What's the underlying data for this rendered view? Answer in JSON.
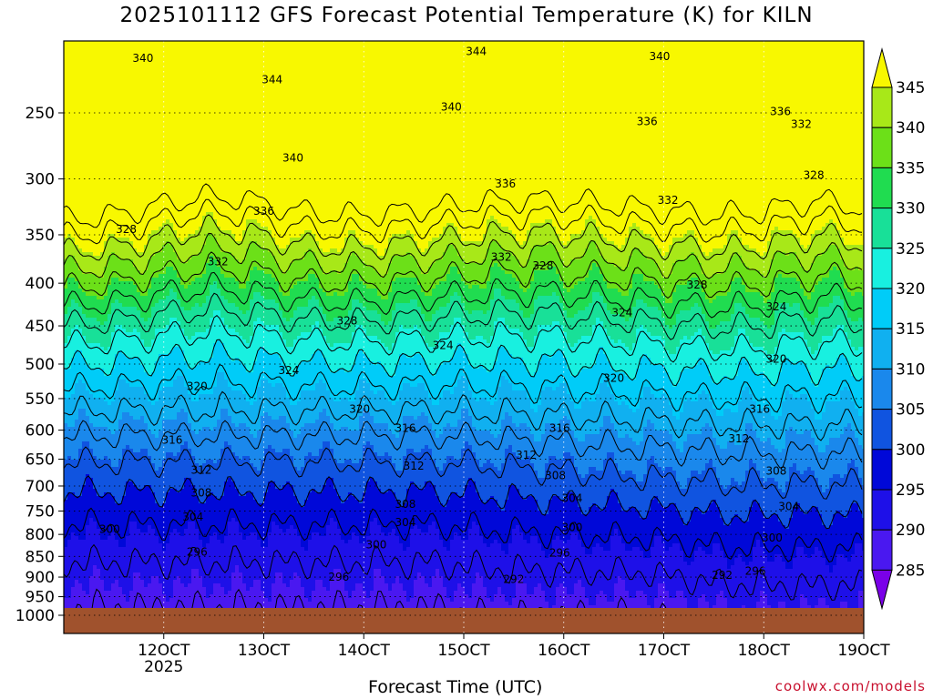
{
  "chart_data": {
    "type": "heatmap",
    "title": "2025101112 GFS Forecast Potential Temperature (K) for KILN",
    "xlabel": "Forecast Time (UTC)",
    "ylabel": "",
    "x_ticks": [
      {
        "label": "12OCT",
        "hour": 24,
        "sub": "2025"
      },
      {
        "label": "13OCT",
        "hour": 48
      },
      {
        "label": "14OCT",
        "hour": 72
      },
      {
        "label": "15OCT",
        "hour": 96
      },
      {
        "label": "16OCT",
        "hour": 120
      },
      {
        "label": "17OCT",
        "hour": 144
      },
      {
        "label": "18OCT",
        "hour": 168
      },
      {
        "label": "19OCT",
        "hour": 192
      }
    ],
    "xlim_hours": [
      0,
      192
    ],
    "ylim_hpa": [
      1000,
      200
    ],
    "y_ticks": [
      250,
      300,
      350,
      400,
      450,
      500,
      550,
      600,
      650,
      700,
      750,
      800,
      850,
      900,
      950,
      1000
    ],
    "y_scale": "log-pressure",
    "colorbar": {
      "levels": [
        285,
        290,
        295,
        300,
        305,
        310,
        315,
        320,
        325,
        330,
        335,
        340,
        345
      ],
      "colors": [
        "#7a00e8",
        "#4a18f0",
        "#1e10e8",
        "#0008d8",
        "#1054e0",
        "#1a88ec",
        "#10b0f0",
        "#00ccf8",
        "#18f0e0",
        "#18e098",
        "#20dc50",
        "#6ce018",
        "#a8e818",
        "#f8f800"
      ],
      "extend": "both"
    },
    "ground_color": "#a0522d",
    "contour_interval": 4,
    "contour_labels": [
      {
        "value": 340,
        "hour": 19,
        "p": 215
      },
      {
        "value": 344,
        "hour": 50,
        "p": 228
      },
      {
        "value": 344,
        "hour": 99,
        "p": 211
      },
      {
        "value": 340,
        "hour": 143,
        "p": 214
      },
      {
        "value": 340,
        "hour": 93,
        "p": 246
      },
      {
        "value": 336,
        "hour": 140,
        "p": 256
      },
      {
        "value": 336,
        "hour": 172,
        "p": 249
      },
      {
        "value": 332,
        "hour": 177,
        "p": 258
      },
      {
        "value": 340,
        "hour": 55,
        "p": 283
      },
      {
        "value": 336,
        "hour": 106,
        "p": 304
      },
      {
        "value": 332,
        "hour": 145,
        "p": 318
      },
      {
        "value": 328,
        "hour": 180,
        "p": 297
      },
      {
        "value": 336,
        "hour": 48,
        "p": 328
      },
      {
        "value": 328,
        "hour": 15,
        "p": 345
      },
      {
        "value": 332,
        "hour": 37,
        "p": 377
      },
      {
        "value": 332,
        "hour": 105,
        "p": 372
      },
      {
        "value": 328,
        "hour": 115,
        "p": 381
      },
      {
        "value": 328,
        "hour": 152,
        "p": 402
      },
      {
        "value": 324,
        "hour": 171,
        "p": 427
      },
      {
        "value": 324,
        "hour": 134,
        "p": 434
      },
      {
        "value": 328,
        "hour": 68,
        "p": 444
      },
      {
        "value": 324,
        "hour": 91,
        "p": 475
      },
      {
        "value": 320,
        "hour": 171,
        "p": 493
      },
      {
        "value": 324,
        "hour": 54,
        "p": 509
      },
      {
        "value": 320,
        "hour": 32,
        "p": 532
      },
      {
        "value": 320,
        "hour": 132,
        "p": 520
      },
      {
        "value": 316,
        "hour": 167,
        "p": 566
      },
      {
        "value": 320,
        "hour": 71,
        "p": 566
      },
      {
        "value": 316,
        "hour": 82,
        "p": 597
      },
      {
        "value": 316,
        "hour": 119,
        "p": 597
      },
      {
        "value": 312,
        "hour": 162,
        "p": 614
      },
      {
        "value": 316,
        "hour": 26,
        "p": 617
      },
      {
        "value": 312,
        "hour": 111,
        "p": 643
      },
      {
        "value": 312,
        "hour": 33,
        "p": 670
      },
      {
        "value": 312,
        "hour": 84,
        "p": 662
      },
      {
        "value": 308,
        "hour": 118,
        "p": 680
      },
      {
        "value": 308,
        "hour": 171,
        "p": 672
      },
      {
        "value": 308,
        "hour": 33,
        "p": 713
      },
      {
        "value": 304,
        "hour": 122,
        "p": 724
      },
      {
        "value": 308,
        "hour": 82,
        "p": 736
      },
      {
        "value": 304,
        "hour": 174,
        "p": 741
      },
      {
        "value": 304,
        "hour": 31,
        "p": 762
      },
      {
        "value": 304,
        "hour": 82,
        "p": 774
      },
      {
        "value": 300,
        "hour": 122,
        "p": 785
      },
      {
        "value": 300,
        "hour": 11,
        "p": 789
      },
      {
        "value": 300,
        "hour": 75,
        "p": 823
      },
      {
        "value": 300,
        "hour": 170,
        "p": 808
      },
      {
        "value": 296,
        "hour": 119,
        "p": 842
      },
      {
        "value": 296,
        "hour": 32,
        "p": 840
      },
      {
        "value": 296,
        "hour": 166,
        "p": 885
      },
      {
        "value": 296,
        "hour": 66,
        "p": 900
      },
      {
        "value": 292,
        "hour": 108,
        "p": 906
      },
      {
        "value": 292,
        "hour": 158,
        "p": 895
      }
    ]
  },
  "credit": "coolwx.com/models"
}
